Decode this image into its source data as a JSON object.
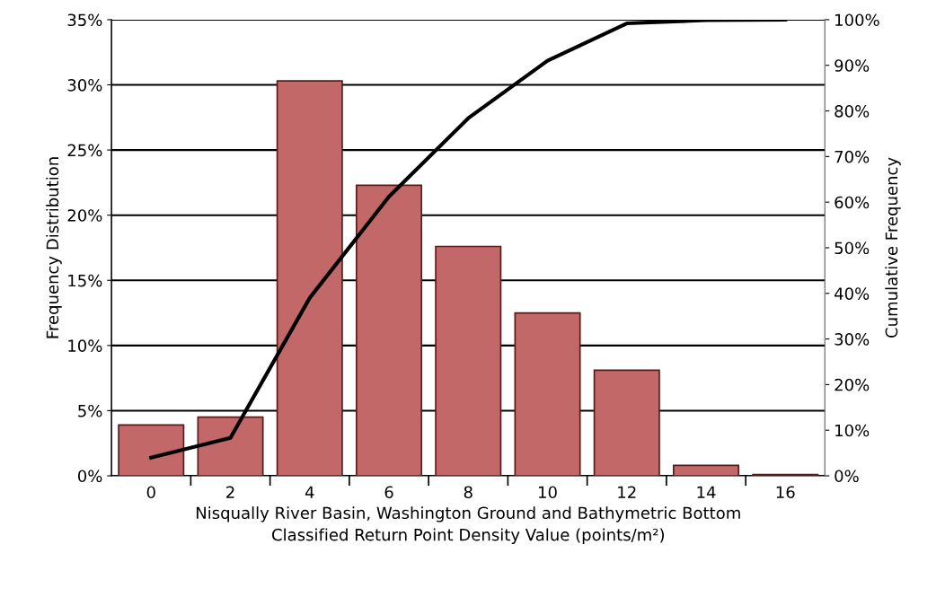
{
  "chart_data": {
    "type": "bar",
    "xlabel": "Nisqually River Basin, Washington Ground and Bathymetric Bottom\nClassified Return Point Density Value (points/m²)",
    "ylabel": "Frequency Distribution",
    "y2label": "Cumulative Frequency",
    "categories": [
      "0",
      "2",
      "4",
      "6",
      "8",
      "10",
      "12",
      "14",
      "16"
    ],
    "series": [
      {
        "color": "#c26868",
        "values": [
          3.9,
          4.5,
          30.3,
          22.3,
          17.6,
          12.5,
          8.1,
          0.8,
          0.1
        ]
      },
      {
        "type": "line",
        "axis": "y2",
        "color": "#000000",
        "values": [
          4.0,
          8.3,
          39.0,
          61.2,
          78.4,
          91.0,
          99.2,
          99.9,
          100
        ]
      }
    ],
    "ylim": [
      0,
      35
    ],
    "yticks": [
      {
        "value": 0,
        "label": "0%"
      },
      {
        "value": 5,
        "label": "5%"
      },
      {
        "value": 10,
        "label": "10%"
      },
      {
        "value": 15,
        "label": "15%"
      },
      {
        "value": 20,
        "label": "20%"
      },
      {
        "value": 25,
        "label": "25%"
      },
      {
        "value": 30,
        "label": "30%"
      },
      {
        "value": 35,
        "label": "35%"
      }
    ],
    "y2lim": [
      0,
      100
    ],
    "y2ticks": [
      {
        "value": 0,
        "label": "0%"
      },
      {
        "value": 10,
        "label": "10%"
      },
      {
        "value": 20,
        "label": "20%"
      },
      {
        "value": 30,
        "label": "30%"
      },
      {
        "value": 40,
        "label": "40%"
      },
      {
        "value": 50,
        "label": "50%"
      },
      {
        "value": 60,
        "label": "60%"
      },
      {
        "value": 70,
        "label": "70%"
      },
      {
        "value": 80,
        "label": "80%"
      },
      {
        "value": 90,
        "label": "90%"
      },
      {
        "value": 100,
        "label": "100%"
      }
    ],
    "grid": "y",
    "legend": false
  }
}
